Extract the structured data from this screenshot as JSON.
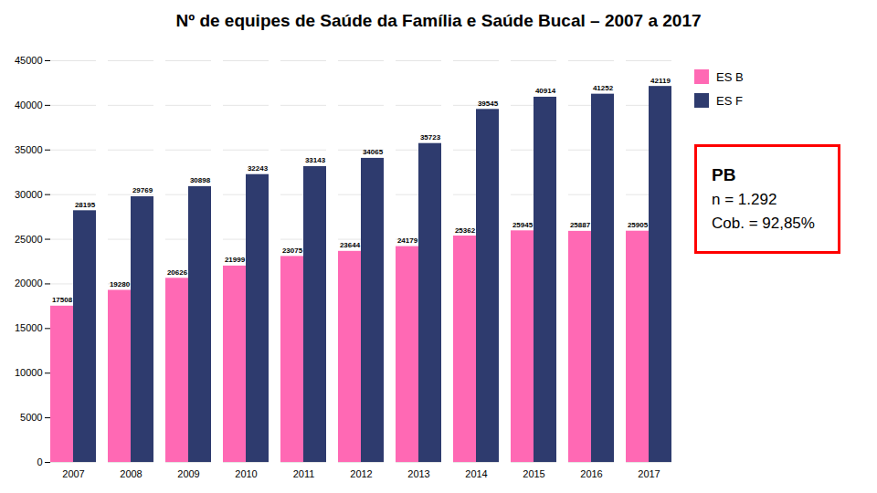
{
  "chart_data": {
    "type": "bar",
    "title": "Nº de equipes de Saúde da Família e Saúde Bucal – 2007 a 2017",
    "categories": [
      "2007",
      "2008",
      "2009",
      "2010",
      "2011",
      "2012",
      "2013",
      "2014",
      "2015",
      "2016",
      "2017"
    ],
    "series": [
      {
        "name": "ES B",
        "color": "#FF69B4",
        "values": [
          17508,
          19280,
          20626,
          21999,
          23075,
          23644,
          24179,
          25362,
          25945,
          25887,
          25905
        ]
      },
      {
        "name": "ES F",
        "color": "#2E3B6E",
        "values": [
          28195,
          29769,
          30898,
          32243,
          33143,
          34065,
          35723,
          39545,
          40914,
          41252,
          42119
        ]
      }
    ],
    "ylim": [
      0,
      45000
    ],
    "yticks": [
      0,
      5000,
      10000,
      15000,
      20000,
      25000,
      30000,
      35000,
      40000,
      45000
    ],
    "grid": true,
    "legend": "right",
    "data_labels": true,
    "annotations": [
      "PB",
      "n = 1.292",
      "Cob. = 92,85%"
    ]
  }
}
